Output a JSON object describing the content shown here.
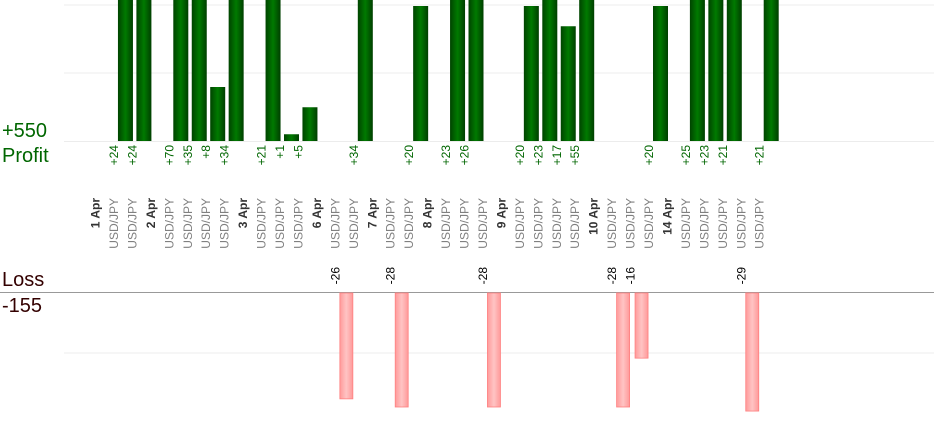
{
  "labels": {
    "profit_total": "+550",
    "profit": "Profit",
    "loss": "Loss",
    "loss_total": "-155"
  },
  "colors": {
    "profit_bar": "#006600",
    "profit_text": "#006600",
    "loss_bar": "#ffb3b3",
    "loss_bar_border": "#ff8080",
    "loss_title": "#330000",
    "date_text": "#333333",
    "pair_text": "#808080",
    "grid": "#ececec",
    "zero_line": "#999999"
  },
  "chart_data": {
    "type": "bar",
    "grid": true,
    "profit_ylim": [
      0,
      40
    ],
    "loss_ylim": [
      -28,
      0
    ],
    "columns": [
      {
        "kind": "date",
        "label": "1 Apr"
      },
      {
        "kind": "trade",
        "pair": "USD/JPY",
        "value": 24,
        "value_label": "+24"
      },
      {
        "kind": "trade",
        "pair": "USD/JPY",
        "value": 24,
        "value_label": "+24"
      },
      {
        "kind": "date",
        "label": "2 Apr"
      },
      {
        "kind": "trade",
        "pair": "USD/JPY",
        "value": 70,
        "value_label": "+70"
      },
      {
        "kind": "trade",
        "pair": "USD/JPY",
        "value": 35,
        "value_label": "+35"
      },
      {
        "kind": "trade",
        "pair": "USD/JPY",
        "value": 8,
        "value_label": "+8"
      },
      {
        "kind": "trade",
        "pair": "USD/JPY",
        "value": 34,
        "value_label": "+34"
      },
      {
        "kind": "date",
        "label": "3 Apr"
      },
      {
        "kind": "trade",
        "pair": "USD/JPY",
        "value": 21,
        "value_label": "+21"
      },
      {
        "kind": "trade",
        "pair": "USD/JPY",
        "value": 1,
        "value_label": "+1"
      },
      {
        "kind": "trade",
        "pair": "USD/JPY",
        "value": 5,
        "value_label": "+5"
      },
      {
        "kind": "date",
        "label": "6 Apr"
      },
      {
        "kind": "trade",
        "pair": "USD/JPY",
        "value": -26,
        "value_label": "-26"
      },
      {
        "kind": "trade",
        "pair": "USD/JPY",
        "value": 34,
        "value_label": "+34"
      },
      {
        "kind": "date",
        "label": "7 Apr"
      },
      {
        "kind": "trade",
        "pair": "USD/JPY",
        "value": -28,
        "value_label": "-28"
      },
      {
        "kind": "trade",
        "pair": "USD/JPY",
        "value": 20,
        "value_label": "+20"
      },
      {
        "kind": "date",
        "label": "8 Apr"
      },
      {
        "kind": "trade",
        "pair": "USD/JPY",
        "value": 23,
        "value_label": "+23"
      },
      {
        "kind": "trade",
        "pair": "USD/JPY",
        "value": 26,
        "value_label": "+26"
      },
      {
        "kind": "trade",
        "pair": "USD/JPY",
        "value": -28,
        "value_label": "-28"
      },
      {
        "kind": "date",
        "label": "9 Apr"
      },
      {
        "kind": "trade",
        "pair": "USD/JPY",
        "value": 20,
        "value_label": "+20"
      },
      {
        "kind": "trade",
        "pair": "USD/JPY",
        "value": 23,
        "value_label": "+23"
      },
      {
        "kind": "trade",
        "pair": "USD/JPY",
        "value": 17,
        "value_label": "+17"
      },
      {
        "kind": "trade",
        "pair": "USD/JPY",
        "value": 55,
        "value_label": "+55"
      },
      {
        "kind": "date",
        "label": "10 Apr"
      },
      {
        "kind": "trade",
        "pair": "USD/JPY",
        "value": -28,
        "value_label": "-28"
      },
      {
        "kind": "trade",
        "pair": "USD/JPY",
        "value": -16,
        "value_label": "-16"
      },
      {
        "kind": "trade",
        "pair": "USD/JPY",
        "value": 20,
        "value_label": "+20"
      },
      {
        "kind": "date",
        "label": "14 Apr"
      },
      {
        "kind": "trade",
        "pair": "USD/JPY",
        "value": 25,
        "value_label": "+25"
      },
      {
        "kind": "trade",
        "pair": "USD/JPY",
        "value": 23,
        "value_label": "+23"
      },
      {
        "kind": "trade",
        "pair": "USD/JPY",
        "value": 21,
        "value_label": "+21"
      },
      {
        "kind": "trade",
        "pair": "USD/JPY",
        "value": -29,
        "value_label": "-29"
      },
      {
        "kind": "trade",
        "pair": "USD/JPY",
        "value": 21,
        "value_label": "+21"
      }
    ]
  }
}
